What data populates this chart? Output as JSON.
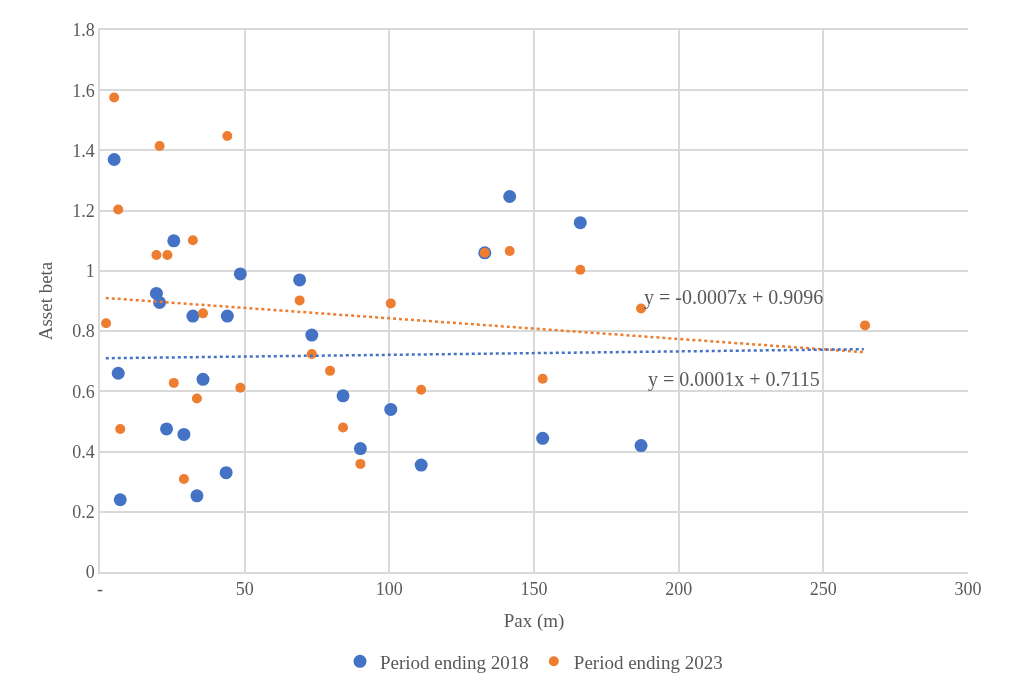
{
  "chart_data": {
    "type": "scatter",
    "xlabel": "Pax (m)",
    "ylabel": "Asset beta",
    "xlim": [
      0,
      300
    ],
    "xticks": [
      {
        "value": 0,
        "label": "-"
      },
      50,
      100,
      150,
      200,
      250,
      300
    ],
    "ylim": [
      0,
      1.8
    ],
    "yticks": [
      0,
      0.2,
      0.4,
      0.6,
      0.8,
      1,
      1.2,
      1.4,
      1.6,
      1.8
    ],
    "grid": true,
    "legend": "bottom",
    "marker": "circle",
    "series": [
      {
        "name": "Period ending 2018",
        "color": "#4472c4",
        "x": [
          4.9,
          6.3,
          7,
          19.5,
          20.6,
          23,
          25.5,
          29,
          32.1,
          33.5,
          35.6,
          43.6,
          44,
          48.5,
          69,
          73.2,
          84,
          90,
          100.5,
          111,
          133,
          141.6,
          153,
          166,
          187
        ],
        "values": [
          1.37,
          0.66,
          0.24,
          0.925,
          0.895,
          0.475,
          1.1,
          0.457,
          0.85,
          0.253,
          0.64,
          0.33,
          0.85,
          0.99,
          0.97,
          0.787,
          0.585,
          0.41,
          0.54,
          0.355,
          1.06,
          1.247,
          0.444,
          1.16,
          0.42
        ]
      },
      {
        "name": "Period ending 2023",
        "color": "#ed7d31",
        "x": [
          2.1,
          4.9,
          6.3,
          7,
          19.5,
          20.6,
          23.3,
          25.5,
          29,
          32.1,
          33.5,
          35.6,
          44,
          48.5,
          69,
          73.2,
          79.5,
          84,
          90,
          100.5,
          111,
          133,
          141.6,
          153,
          166,
          187,
          264.4
        ],
        "values": [
          0.826,
          1.576,
          1.204,
          0.475,
          1.053,
          1.415,
          1.053,
          0.628,
          0.309,
          1.102,
          0.576,
          0.859,
          1.448,
          0.612,
          0.902,
          0.724,
          0.668,
          0.48,
          0.359,
          0.892,
          0.605,
          1.06,
          1.066,
          0.642,
          1.004,
          0.875,
          0.819
        ]
      },
      {
        "type": "line",
        "marker": "none",
        "line_style": "dotted",
        "color": "#ed7d31",
        "x": [
          2,
          264
        ],
        "values": [
          0.91,
          0.73
        ]
      },
      {
        "type": "line",
        "marker": "none",
        "line_style": "dotted",
        "color": "#4472c4",
        "x": [
          2,
          264
        ],
        "values": [
          0.71,
          0.74
        ]
      }
    ],
    "annotations": [
      "y = -0.0007x + 0.9096",
      "y = 0.0001x + 0.7115"
    ]
  }
}
